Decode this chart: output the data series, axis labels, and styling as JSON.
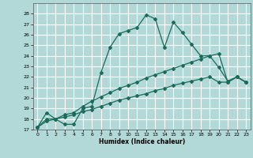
{
  "xlabel": "Humidex (Indice chaleur)",
  "bg_color": "#b2d8d8",
  "grid_color": "#ffffff",
  "line_color": "#1a6b5a",
  "xlim": [
    -0.5,
    23.5
  ],
  "ylim": [
    17,
    29
  ],
  "yticks": [
    17,
    18,
    19,
    20,
    21,
    22,
    23,
    24,
    25,
    26,
    27,
    28
  ],
  "xticks": [
    0,
    1,
    2,
    3,
    4,
    5,
    6,
    7,
    8,
    9,
    10,
    11,
    12,
    13,
    14,
    15,
    16,
    17,
    18,
    19,
    20,
    21,
    22,
    23
  ],
  "line1_x": [
    0,
    1,
    2,
    3,
    4,
    5,
    6,
    7,
    8,
    9,
    10,
    11,
    12,
    13,
    14,
    15,
    16,
    17,
    18,
    19,
    20,
    21,
    22,
    23
  ],
  "line1_y": [
    17.2,
    18.6,
    18.0,
    17.5,
    17.5,
    19.0,
    19.2,
    22.4,
    24.8,
    26.1,
    26.4,
    26.7,
    27.9,
    27.5,
    24.8,
    27.2,
    26.2,
    25.1,
    24.0,
    24.0,
    22.9,
    21.6,
    22.0,
    21.5
  ],
  "line2_x": [
    0,
    1,
    2,
    3,
    4,
    5,
    6,
    7,
    8,
    9,
    10,
    11,
    12,
    13,
    14,
    15,
    16,
    17,
    18,
    19,
    20,
    21,
    22,
    23
  ],
  "line2_y": [
    17.2,
    18.0,
    18.0,
    18.4,
    18.6,
    19.2,
    19.7,
    20.1,
    20.5,
    20.9,
    21.2,
    21.5,
    21.9,
    22.2,
    22.5,
    22.8,
    23.1,
    23.4,
    23.7,
    24.0,
    24.2,
    21.5,
    22.0,
    21.5
  ],
  "line3_x": [
    0,
    1,
    2,
    3,
    4,
    5,
    6,
    7,
    8,
    9,
    10,
    11,
    12,
    13,
    14,
    15,
    16,
    17,
    18,
    19,
    20,
    21,
    22,
    23
  ],
  "line3_y": [
    17.2,
    17.8,
    18.0,
    18.2,
    18.4,
    18.7,
    18.9,
    19.2,
    19.5,
    19.8,
    20.0,
    20.2,
    20.4,
    20.7,
    20.9,
    21.2,
    21.4,
    21.6,
    21.8,
    22.0,
    21.5,
    21.5,
    22.0,
    21.5
  ]
}
